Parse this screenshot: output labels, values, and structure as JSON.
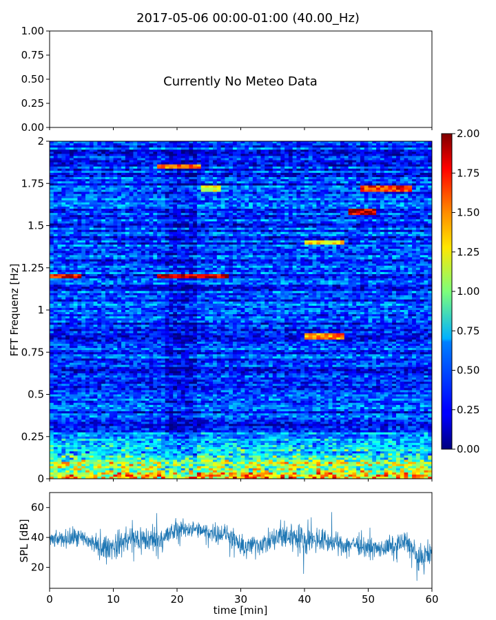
{
  "title": "2017-05-06 00:00-01:00 (40.00_Hz)",
  "chart_data": [
    {
      "panel": "meteo",
      "type": "line",
      "ylim": [
        0,
        1
      ],
      "yticks": [
        "0.00",
        "0.25",
        "0.50",
        "0.75",
        "1.00"
      ],
      "message": "Currently No Meteo Data",
      "series": []
    },
    {
      "panel": "spectrogram",
      "type": "heatmap",
      "ylabel": "FFT Frequenz [Hz]",
      "xlim": [
        0,
        60
      ],
      "ylim": [
        0,
        2
      ],
      "yticks": [
        "0",
        "0.25",
        "0.5",
        "0.75",
        "1",
        "1.25",
        "1.5",
        "1.75",
        "2"
      ],
      "colormap": "jet",
      "colorbar": {
        "range": [
          0,
          2
        ],
        "ticks": [
          "0.00",
          "0.25",
          "0.50",
          "0.75",
          "1.00",
          "1.25",
          "1.50",
          "1.75",
          "2.00"
        ]
      },
      "features": [
        {
          "x": [
            0,
            5
          ],
          "y": 1.2,
          "value": 1.8
        },
        {
          "x": [
            17,
            24
          ],
          "y": 1.85,
          "value": 1.5
        },
        {
          "x": [
            17,
            28
          ],
          "y": 1.2,
          "value": 1.9
        },
        {
          "x": [
            24,
            27
          ],
          "y": 1.72,
          "value": 1.2
        },
        {
          "x": [
            47,
            51
          ],
          "y": 1.58,
          "value": 1.9
        },
        {
          "x": [
            49,
            57
          ],
          "y": 1.72,
          "value": 1.7
        },
        {
          "x": [
            40,
            46
          ],
          "y": 1.4,
          "value": 1.3
        },
        {
          "x": [
            40,
            46
          ],
          "y": 0.84,
          "value": 1.5
        }
      ],
      "low_frequency_band": {
        "y": [
          0,
          0.3
        ],
        "value_range": [
          0.8,
          2.0
        ]
      }
    },
    {
      "panel": "spl",
      "type": "line",
      "ylabel": "SPL [dB]",
      "xlabel": "time [min]",
      "xlim": [
        0,
        60
      ],
      "ylim": [
        6,
        70
      ],
      "yticks": [
        "20",
        "40",
        "60"
      ],
      "xticks": [
        "0",
        "10",
        "20",
        "30",
        "40",
        "50",
        "60"
      ],
      "color": "#1f77b4",
      "series": [
        {
          "x": [
            0,
            2,
            4,
            6,
            8,
            10,
            12,
            14,
            16,
            18,
            20,
            22,
            24,
            26,
            28,
            30,
            32,
            34,
            36,
            38,
            40,
            42,
            44,
            46,
            48,
            50,
            52,
            54,
            56,
            58,
            60
          ],
          "y": [
            38,
            39,
            40,
            38,
            33,
            34,
            38,
            39,
            38,
            40,
            45,
            46,
            44,
            43,
            42,
            33,
            35,
            36,
            40,
            41,
            38,
            39,
            37,
            35,
            36,
            33,
            32,
            34,
            38,
            25,
            30
          ],
          "spread": [
            5,
            6,
            7,
            7,
            8,
            9,
            11,
            11,
            10,
            9,
            7,
            6,
            6,
            7,
            7,
            8,
            7,
            8,
            10,
            11,
            10,
            9,
            8,
            7,
            7,
            7,
            7,
            7,
            8,
            10,
            8
          ]
        }
      ]
    }
  ]
}
